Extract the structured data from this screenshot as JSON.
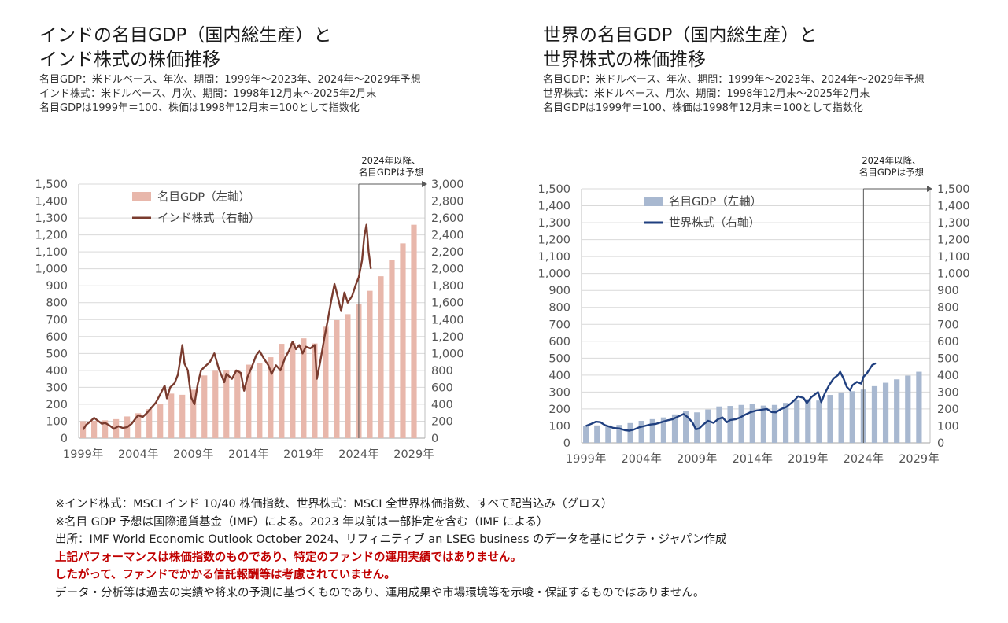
{
  "left": {
    "title_lines": [
      "インドの名目GDP（国内総生産）と",
      "インド株式の株価推移"
    ],
    "subtitle_lines": [
      "名目GDP：米ドルベース、年次、期間：1999年～2023年、2024年～2029年予想",
      "インド株式：米ドルベース、月次、期間：1998年12月末～2025年2月末",
      "名目GDPは1999年＝100、株価は1998年12月末＝100として指数化"
    ]
  },
  "right": {
    "title_lines": [
      "世界の名目GDP（国内総生産）と",
      "世界株式の株価推移"
    ],
    "subtitle_lines": [
      "名目GDP：米ドルベース、年次、期間：1999年～2023年、2024年～2029年予想",
      "世界株式：米ドルベース、月次、期間：1998年12月末～2025年2月末",
      "名目GDPは1999年＝100、株価は1998年12月末＝100として指数化"
    ]
  },
  "chart_data": [
    {
      "type": "bar+line",
      "title": "インドの名目GDP（国内総生産）とインド株式の株価推移",
      "categories": [
        1999,
        2000,
        2001,
        2002,
        2003,
        2004,
        2005,
        2006,
        2007,
        2008,
        2009,
        2010,
        2011,
        2012,
        2013,
        2014,
        2015,
        2016,
        2017,
        2018,
        2019,
        2020,
        2021,
        2022,
        2023,
        2024,
        2025,
        2026,
        2027,
        2028,
        2029
      ],
      "x_tick_labels": [
        "1999年",
        "2004年",
        "2009年",
        "2014年",
        "2019年",
        "2024年",
        "2029年"
      ],
      "left_ticks": [
        "0",
        "100",
        "200",
        "300",
        "400",
        "500",
        "600",
        "700",
        "800",
        "900",
        "1,000",
        "1,100",
        "1,200",
        "1,300",
        "1,400",
        "1,500"
      ],
      "right_ticks": [
        "0",
        "200",
        "400",
        "600",
        "800",
        "1,000",
        "1,200",
        "1,400",
        "1,600",
        "1,800",
        "2,000",
        "2,200",
        "2,400",
        "2,600",
        "2,800",
        "3,000"
      ],
      "left_ylim": [
        0,
        1500
      ],
      "right_ylim": [
        0,
        3000
      ],
      "bar_color": "#e8b7ab",
      "line_color": "#7a3b2e",
      "series": [
        {
          "name": "名目GDP（左軸）",
          "axis": "left",
          "type": "bar",
          "values": [
            100,
            102,
            105,
            112,
            128,
            147,
            171,
            200,
            263,
            256,
            286,
            370,
            398,
            401,
            402,
            434,
            442,
            478,
            557,
            562,
            589,
            559,
            658,
            697,
            732,
            794,
            870,
            956,
            1050,
            1150,
            1260
          ]
        },
        {
          "name": "インド株式（右軸）",
          "axis": "right",
          "type": "line",
          "points": [
            [
              1999.0,
              100
            ],
            [
              1999.3,
              160
            ],
            [
              1999.6,
              190
            ],
            [
              2000.0,
              240
            ],
            [
              2000.3,
              210
            ],
            [
              2000.7,
              170
            ],
            [
              2001.0,
              180
            ],
            [
              2001.4,
              150
            ],
            [
              2001.8,
              110
            ],
            [
              2002.2,
              140
            ],
            [
              2002.6,
              120
            ],
            [
              2003.0,
              130
            ],
            [
              2003.4,
              170
            ],
            [
              2003.8,
              240
            ],
            [
              2004.0,
              270
            ],
            [
              2004.4,
              250
            ],
            [
              2004.8,
              300
            ],
            [
              2005.2,
              360
            ],
            [
              2005.6,
              420
            ],
            [
              2006.0,
              520
            ],
            [
              2006.4,
              620
            ],
            [
              2006.6,
              470
            ],
            [
              2006.9,
              600
            ],
            [
              2007.3,
              650
            ],
            [
              2007.6,
              750
            ],
            [
              2007.9,
              1000
            ],
            [
              2008.0,
              1100
            ],
            [
              2008.2,
              880
            ],
            [
              2008.5,
              800
            ],
            [
              2008.8,
              480
            ],
            [
              2009.1,
              400
            ],
            [
              2009.4,
              640
            ],
            [
              2009.7,
              800
            ],
            [
              2010.0,
              840
            ],
            [
              2010.5,
              900
            ],
            [
              2010.9,
              1000
            ],
            [
              2011.3,
              820
            ],
            [
              2011.8,
              660
            ],
            [
              2012.0,
              760
            ],
            [
              2012.5,
              700
            ],
            [
              2012.9,
              800
            ],
            [
              2013.3,
              770
            ],
            [
              2013.6,
              560
            ],
            [
              2013.9,
              720
            ],
            [
              2014.3,
              840
            ],
            [
              2014.7,
              980
            ],
            [
              2015.0,
              1030
            ],
            [
              2015.4,
              940
            ],
            [
              2015.8,
              860
            ],
            [
              2016.1,
              760
            ],
            [
              2016.5,
              860
            ],
            [
              2016.9,
              800
            ],
            [
              2017.3,
              940
            ],
            [
              2017.7,
              1040
            ],
            [
              2018.0,
              1140
            ],
            [
              2018.3,
              1050
            ],
            [
              2018.6,
              1100
            ],
            [
              2018.9,
              1000
            ],
            [
              2019.2,
              1080
            ],
            [
              2019.6,
              1060
            ],
            [
              2020.0,
              1100
            ],
            [
              2020.2,
              700
            ],
            [
              2020.5,
              900
            ],
            [
              2020.9,
              1200
            ],
            [
              2021.2,
              1400
            ],
            [
              2021.5,
              1620
            ],
            [
              2021.8,
              1820
            ],
            [
              2022.0,
              1720
            ],
            [
              2022.4,
              1500
            ],
            [
              2022.7,
              1720
            ],
            [
              2023.0,
              1600
            ],
            [
              2023.4,
              1680
            ],
            [
              2023.7,
              1800
            ],
            [
              2024.0,
              1900
            ],
            [
              2024.3,
              2100
            ],
            [
              2024.5,
              2380
            ],
            [
              2024.7,
              2520
            ],
            [
              2024.9,
              2200
            ],
            [
              2025.1,
              2000
            ]
          ]
        }
      ],
      "annotation": {
        "lines": [
          "2024年以降、",
          "名目GDPは予想"
        ],
        "from_year": 2024
      }
    },
    {
      "type": "bar+line",
      "title": "世界の名目GDP（国内総生産）と世界株式の株価推移",
      "categories": [
        1999,
        2000,
        2001,
        2002,
        2003,
        2004,
        2005,
        2006,
        2007,
        2008,
        2009,
        2010,
        2011,
        2012,
        2013,
        2014,
        2015,
        2016,
        2017,
        2018,
        2019,
        2020,
        2021,
        2022,
        2023,
        2024,
        2025,
        2026,
        2027,
        2028,
        2029
      ],
      "x_tick_labels": [
        "1999年",
        "2004年",
        "2009年",
        "2014年",
        "2019年",
        "2024年",
        "2029年"
      ],
      "left_ticks": [
        "0",
        "100",
        "200",
        "300",
        "400",
        "500",
        "600",
        "700",
        "800",
        "900",
        "1,000",
        "1,100",
        "1,200",
        "1,300",
        "1,400",
        "1,500"
      ],
      "right_ticks": [
        "0",
        "100",
        "200",
        "300",
        "400",
        "500",
        "600",
        "700",
        "800",
        "900",
        "1,000",
        "1,100",
        "1,200",
        "1,300",
        "1,400",
        "1,500"
      ],
      "left_ylim": [
        0,
        1500
      ],
      "right_ylim": [
        0,
        1500
      ],
      "bar_color": "#a8b8d0",
      "line_color": "#1f3f7f",
      "series": [
        {
          "name": "名目GDP（左軸）",
          "axis": "left",
          "type": "bar",
          "values": [
            100,
            103,
            103,
            106,
            117,
            130,
            140,
            150,
            168,
            186,
            180,
            197,
            215,
            218,
            224,
            232,
            220,
            224,
            236,
            252,
            258,
            250,
            283,
            298,
            305,
            315,
            335,
            355,
            375,
            397,
            420
          ]
        },
        {
          "name": "世界株式（右軸）",
          "axis": "right",
          "type": "line",
          "points": [
            [
              1999.0,
              100
            ],
            [
              1999.4,
              110
            ],
            [
              1999.9,
              125
            ],
            [
              2000.3,
              122
            ],
            [
              2000.7,
              105
            ],
            [
              2001.0,
              98
            ],
            [
              2001.5,
              88
            ],
            [
              2002.0,
              85
            ],
            [
              2002.5,
              75
            ],
            [
              2002.9,
              72
            ],
            [
              2003.3,
              78
            ],
            [
              2003.8,
              92
            ],
            [
              2004.3,
              100
            ],
            [
              2004.8,
              108
            ],
            [
              2005.3,
              112
            ],
            [
              2005.8,
              122
            ],
            [
              2006.3,
              132
            ],
            [
              2006.8,
              140
            ],
            [
              2007.3,
              155
            ],
            [
              2007.8,
              170
            ],
            [
              2008.2,
              150
            ],
            [
              2008.6,
              120
            ],
            [
              2008.9,
              80
            ],
            [
              2009.2,
              85
            ],
            [
              2009.6,
              110
            ],
            [
              2010.0,
              130
            ],
            [
              2010.5,
              118
            ],
            [
              2010.9,
              140
            ],
            [
              2011.3,
              150
            ],
            [
              2011.7,
              122
            ],
            [
              2012.0,
              135
            ],
            [
              2012.5,
              140
            ],
            [
              2012.9,
              150
            ],
            [
              2013.3,
              165
            ],
            [
              2013.8,
              180
            ],
            [
              2014.3,
              190
            ],
            [
              2014.8,
              195
            ],
            [
              2015.3,
              200
            ],
            [
              2015.7,
              182
            ],
            [
              2016.1,
              180
            ],
            [
              2016.6,
              200
            ],
            [
              2017.0,
              210
            ],
            [
              2017.5,
              235
            ],
            [
              2017.9,
              260
            ],
            [
              2018.1,
              275
            ],
            [
              2018.6,
              265
            ],
            [
              2018.9,
              235
            ],
            [
              2019.3,
              270
            ],
            [
              2019.9,
              300
            ],
            [
              2020.2,
              240
            ],
            [
              2020.5,
              290
            ],
            [
              2020.9,
              340
            ],
            [
              2021.3,
              380
            ],
            [
              2021.7,
              400
            ],
            [
              2021.9,
              420
            ],
            [
              2022.2,
              380
            ],
            [
              2022.5,
              330
            ],
            [
              2022.8,
              310
            ],
            [
              2023.0,
              340
            ],
            [
              2023.4,
              360
            ],
            [
              2023.8,
              350
            ],
            [
              2024.0,
              390
            ],
            [
              2024.3,
              410
            ],
            [
              2024.5,
              430
            ],
            [
              2024.8,
              460
            ],
            [
              2025.1,
              470
            ]
          ]
        }
      ],
      "annotation": {
        "lines": [
          "2024年以降、",
          "名目GDPは予想"
        ],
        "from_year": 2024
      }
    }
  ],
  "notes": [
    "※インド株式：MSCI インド 10/40 株価指数、世界株式：MSCI 全世界株価指数、すべて配当込み（グロス）",
    "※名目 GDP 予想は国際通貨基金（IMF）による。2023 年以前は一部推定を含む（IMF による）",
    "出所：IMF World Economic Outlook October 2024、リフィニティブ an LSEG business のデータを基にピクテ・ジャパン作成"
  ],
  "warnings": [
    "上記パフォーマンスは株価指数のものであり、特定のファンドの運用実績ではありません。",
    "したがって、ファンドでかかる信託報酬等は考慮されていません。"
  ],
  "disclaimer": "データ・分析等は過去の実績や将来の予測に基づくものであり、運用成果や市場環境等を示唆・保証するものではありません。"
}
